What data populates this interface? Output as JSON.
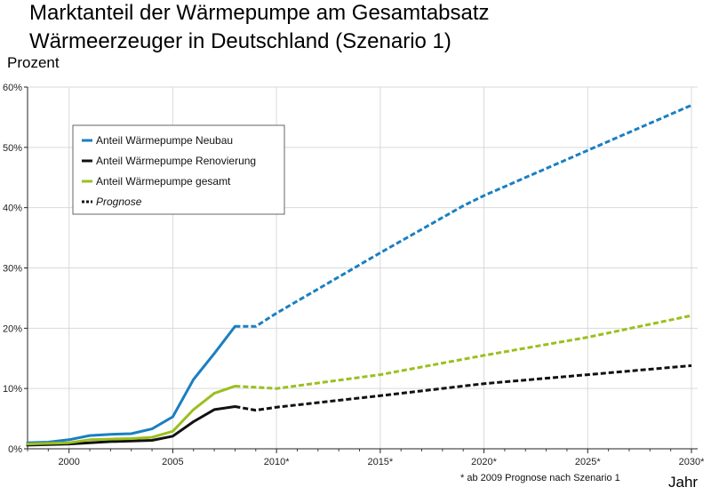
{
  "chart_data": {
    "type": "line",
    "title": [
      "Marktanteil der Wärmepumpe am Gesamtabsatz",
      "Wärmeerzeuger in Deutschland (Szenario 1)"
    ],
    "ylabel": "Prozent",
    "xlabel": "Jahr",
    "footnote": "* ab 2009 Prognose nach Szenario 1",
    "xlim": [
      1998,
      2030.3
    ],
    "ylim": [
      0,
      60
    ],
    "y_ticks": [
      "0%",
      "10%",
      "20%",
      "30%",
      "40%",
      "50%",
      "60%"
    ],
    "y_tick_values": [
      0,
      10,
      20,
      30,
      40,
      50,
      60
    ],
    "x_tick_values": [
      2000,
      2005,
      2010,
      2015,
      2020,
      2025,
      2030
    ],
    "x_ticks": [
      "2000",
      "2005",
      "2010*",
      "2015*",
      "2020*",
      "2025*",
      "2030*"
    ],
    "grid": true,
    "legend_position": "top-left",
    "forecast_start": 2008,
    "series": [
      {
        "name": "Anteil Wärmepumpe Neubau",
        "color": "#1a7fc1",
        "x": [
          1998,
          1999,
          2000,
          2001,
          2002,
          2003,
          2004,
          2005,
          2006,
          2007,
          2008,
          2009,
          2010,
          2015,
          2019,
          2020,
          2025,
          2030
        ],
        "y": [
          1.0,
          1.1,
          1.5,
          2.2,
          2.4,
          2.5,
          3.3,
          5.3,
          11.5,
          15.8,
          20.3,
          20.3,
          22.5,
          32.5,
          40.3,
          42.0,
          49.5,
          57.0
        ]
      },
      {
        "name": "Anteil Wärmepumpe Renovierung",
        "color": "#111111",
        "x": [
          1998,
          1999,
          2000,
          2001,
          2002,
          2003,
          2004,
          2005,
          2006,
          2007,
          2008,
          2009,
          2010,
          2015,
          2020,
          2025,
          2030
        ],
        "y": [
          0.6,
          0.7,
          0.8,
          1.0,
          1.2,
          1.3,
          1.4,
          2.1,
          4.5,
          6.5,
          7.0,
          6.4,
          6.9,
          8.8,
          10.8,
          12.3,
          13.8
        ]
      },
      {
        "name": "Anteil Wärmepumpe gesamt",
        "color": "#9bbf1e",
        "x": [
          1998,
          1999,
          2000,
          2001,
          2002,
          2003,
          2004,
          2005,
          2006,
          2007,
          2008,
          2009,
          2010,
          2015,
          2020,
          2025,
          2030
        ],
        "y": [
          0.8,
          0.9,
          1.0,
          1.5,
          1.6,
          1.7,
          1.9,
          2.9,
          6.5,
          9.2,
          10.4,
          10.2,
          10.0,
          12.3,
          15.5,
          18.5,
          22.1
        ]
      }
    ],
    "legend_items": [
      {
        "label": "Anteil Wärmepumpe Neubau",
        "color": "#1a7fc1",
        "style": "solid"
      },
      {
        "label": "Anteil Wärmepumpe Renovierung",
        "color": "#111111",
        "style": "solid"
      },
      {
        "label": "Anteil Wärmepumpe gesamt",
        "color": "#9bbf1e",
        "style": "solid"
      },
      {
        "label": "Prognose",
        "color": "#111111",
        "style": "dashed"
      }
    ]
  }
}
